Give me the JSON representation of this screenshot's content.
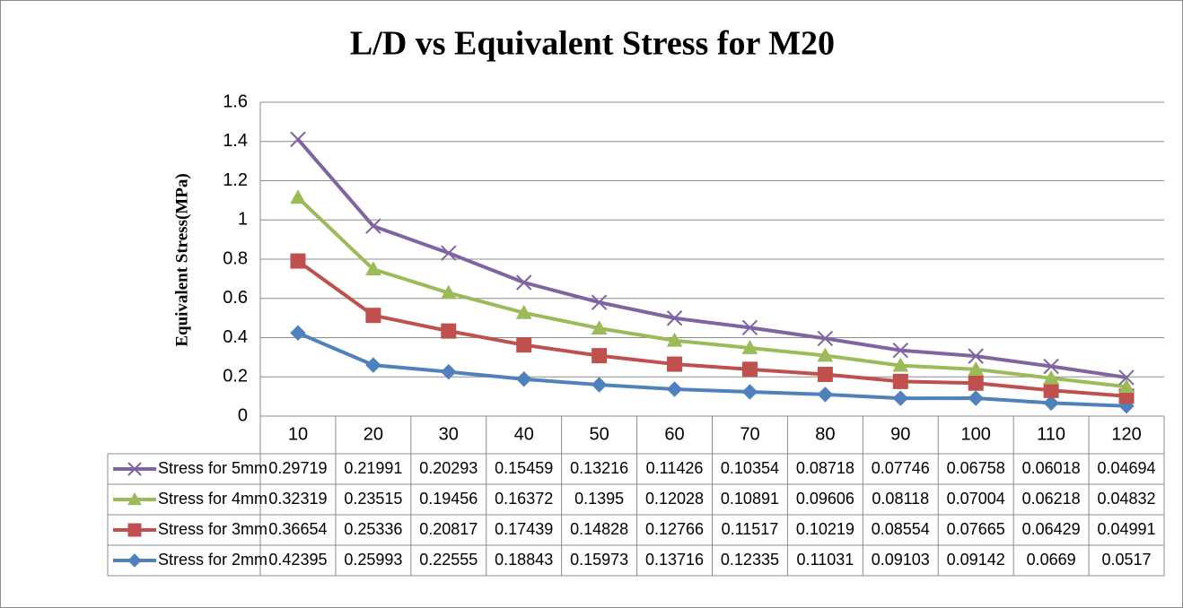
{
  "chart_data": {
    "type": "stacked_line",
    "title": "L/D vs Equivalent Stress for M20",
    "y_label": "Equivalent Stress(MPa)",
    "categories": [
      10,
      20,
      30,
      40,
      50,
      60,
      70,
      80,
      90,
      100,
      110,
      120
    ],
    "series": [
      {
        "name": "Stress for 2mm",
        "color": "#4f81bd",
        "marker": "diamond",
        "values": [
          0.42395,
          0.25993,
          0.22555,
          0.18843,
          0.15973,
          0.13716,
          0.12335,
          0.11031,
          0.09103,
          0.09142,
          0.0669,
          0.0517
        ]
      },
      {
        "name": "Stress for 3mm",
        "color": "#c0504d",
        "marker": "square",
        "values": [
          0.36654,
          0.25336,
          0.20817,
          0.17439,
          0.14828,
          0.12766,
          0.11517,
          0.10219,
          0.08554,
          0.07665,
          0.06429,
          0.04991
        ]
      },
      {
        "name": "Stress for 4mm",
        "color": "#9bbb59",
        "marker": "triangle",
        "values": [
          0.32319,
          0.23515,
          0.19456,
          0.16372,
          0.1395,
          0.12028,
          0.10891,
          0.09606,
          0.08118,
          0.07004,
          0.06218,
          0.04832
        ]
      },
      {
        "name": "Stress for 5mm",
        "color": "#8064a2",
        "marker": "x",
        "values": [
          0.29719,
          0.21991,
          0.20293,
          0.15459,
          0.13216,
          0.11426,
          0.10354,
          0.08718,
          0.07746,
          0.06758,
          0.06018,
          0.04694
        ]
      }
    ],
    "ylim": [
      0,
      1.6
    ],
    "yticks": [
      0,
      0.2,
      0.4,
      0.6,
      0.8,
      1,
      1.2,
      1.4,
      1.6
    ],
    "grid": true,
    "data_table": true
  }
}
